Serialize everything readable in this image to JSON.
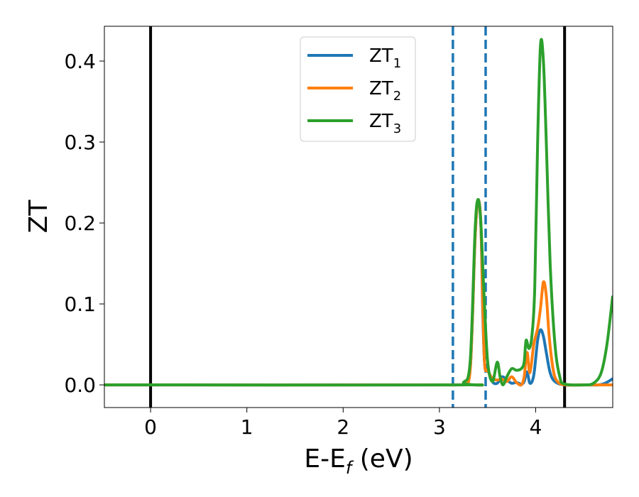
{
  "chart_data": {
    "type": "line",
    "xlabel": "E-E",
    "xlabel_sub": "f",
    "xlabel_unit": "(eV)",
    "ylabel": "ZT",
    "xlim": [
      -0.48,
      4.8
    ],
    "ylim": [
      -0.028,
      0.443
    ],
    "x_ticks": [
      0,
      1,
      2,
      3,
      4
    ],
    "x_tick_labels": [
      "0",
      "1",
      "2",
      "3",
      "4"
    ],
    "y_ticks": [
      0.0,
      0.1,
      0.2,
      0.3,
      0.4
    ],
    "y_tick_labels": [
      "0.0",
      "0.1",
      "0.2",
      "0.3",
      "0.4"
    ],
    "grid": false,
    "legend_position": "top-center",
    "vertical_lines": [
      {
        "x": 0.0,
        "style": "solid",
        "color": "#000000"
      },
      {
        "x": 4.3,
        "style": "solid",
        "color": "#000000"
      },
      {
        "x": 3.14,
        "style": "dashed",
        "color": "#1f77b4"
      },
      {
        "x": 3.48,
        "style": "dashed",
        "color": "#1f77b4"
      }
    ],
    "series": [
      {
        "name": "ZT",
        "name_sub": "1",
        "color": "#1f77b4",
        "points": [
          [
            -0.48,
            0
          ],
          [
            3.15,
            0
          ],
          [
            3.25,
            0.002
          ],
          [
            3.32,
            0.02
          ],
          [
            3.37,
            0.18
          ],
          [
            3.4,
            0.228
          ],
          [
            3.43,
            0.2
          ],
          [
            3.45,
            0.09
          ],
          [
            3.47,
            0.025
          ],
          [
            3.5,
            0.02
          ],
          [
            3.55,
            0.004
          ],
          [
            3.6,
            0.002
          ],
          [
            3.65,
            0.01
          ],
          [
            3.7,
            0.006
          ],
          [
            3.75,
            0.002
          ],
          [
            3.8,
            0.003
          ],
          [
            3.85,
            0.001
          ],
          [
            3.88,
            0.004
          ],
          [
            3.91,
            0.016
          ],
          [
            3.94,
            0.002
          ],
          [
            3.98,
            0.012
          ],
          [
            4.02,
            0.055
          ],
          [
            4.05,
            0.068
          ],
          [
            4.08,
            0.06
          ],
          [
            4.11,
            0.04
          ],
          [
            4.15,
            0.015
          ],
          [
            4.2,
            0.004
          ],
          [
            4.3,
            0.0
          ],
          [
            4.5,
            0
          ],
          [
            4.65,
            0
          ],
          [
            4.72,
            0.002
          ],
          [
            4.78,
            0.006
          ],
          [
            4.8,
            0.008
          ]
        ]
      },
      {
        "name": "ZT",
        "name_sub": "2",
        "color": "#ff7f0e",
        "points": [
          [
            -0.48,
            0
          ],
          [
            3.15,
            0
          ],
          [
            3.25,
            0.002
          ],
          [
            3.32,
            0.02
          ],
          [
            3.37,
            0.18
          ],
          [
            3.4,
            0.228
          ],
          [
            3.43,
            0.2
          ],
          [
            3.45,
            0.1
          ],
          [
            3.47,
            0.025
          ],
          [
            3.5,
            0.018
          ],
          [
            3.55,
            0.008
          ],
          [
            3.6,
            0.006
          ],
          [
            3.65,
            0.007
          ],
          [
            3.7,
            0.004
          ],
          [
            3.75,
            0.01
          ],
          [
            3.8,
            0.003
          ],
          [
            3.85,
            0.0
          ],
          [
            3.88,
            0.01
          ],
          [
            3.91,
            0.04
          ],
          [
            3.94,
            0.015
          ],
          [
            3.98,
            0.05
          ],
          [
            4.02,
            0.07
          ],
          [
            4.05,
            0.095
          ],
          [
            4.08,
            0.127
          ],
          [
            4.11,
            0.11
          ],
          [
            4.14,
            0.06
          ],
          [
            4.18,
            0.02
          ],
          [
            4.22,
            0.005
          ],
          [
            4.3,
            0.0
          ],
          [
            4.5,
            0
          ],
          [
            4.65,
            0
          ],
          [
            4.8,
            0
          ]
        ]
      },
      {
        "name": "ZT",
        "name_sub": "3",
        "color": "#2ca02c",
        "points": [
          [
            -0.48,
            0
          ],
          [
            3.15,
            0
          ],
          [
            3.25,
            0.003
          ],
          [
            3.32,
            0.03
          ],
          [
            3.37,
            0.19
          ],
          [
            3.4,
            0.229
          ],
          [
            3.43,
            0.2
          ],
          [
            3.46,
            0.12
          ],
          [
            3.5,
            0.03
          ],
          [
            3.55,
            0.004
          ],
          [
            3.6,
            0.028
          ],
          [
            3.63,
            0.01
          ],
          [
            3.66,
            0.0
          ],
          [
            3.7,
            0.01
          ],
          [
            3.75,
            0.02
          ],
          [
            3.8,
            0.018
          ],
          [
            3.85,
            0.02
          ],
          [
            3.88,
            0.028
          ],
          [
            3.9,
            0.055
          ],
          [
            3.93,
            0.045
          ],
          [
            3.96,
            0.06
          ],
          [
            3.99,
            0.12
          ],
          [
            4.02,
            0.3
          ],
          [
            4.05,
            0.42
          ],
          [
            4.08,
            0.4
          ],
          [
            4.11,
            0.3
          ],
          [
            4.15,
            0.15
          ],
          [
            4.2,
            0.05
          ],
          [
            4.25,
            0.01
          ],
          [
            4.3,
            0.001
          ],
          [
            4.5,
            0
          ],
          [
            4.6,
            0.002
          ],
          [
            4.68,
            0.015
          ],
          [
            4.74,
            0.05
          ],
          [
            4.8,
            0.11
          ]
        ]
      }
    ]
  }
}
